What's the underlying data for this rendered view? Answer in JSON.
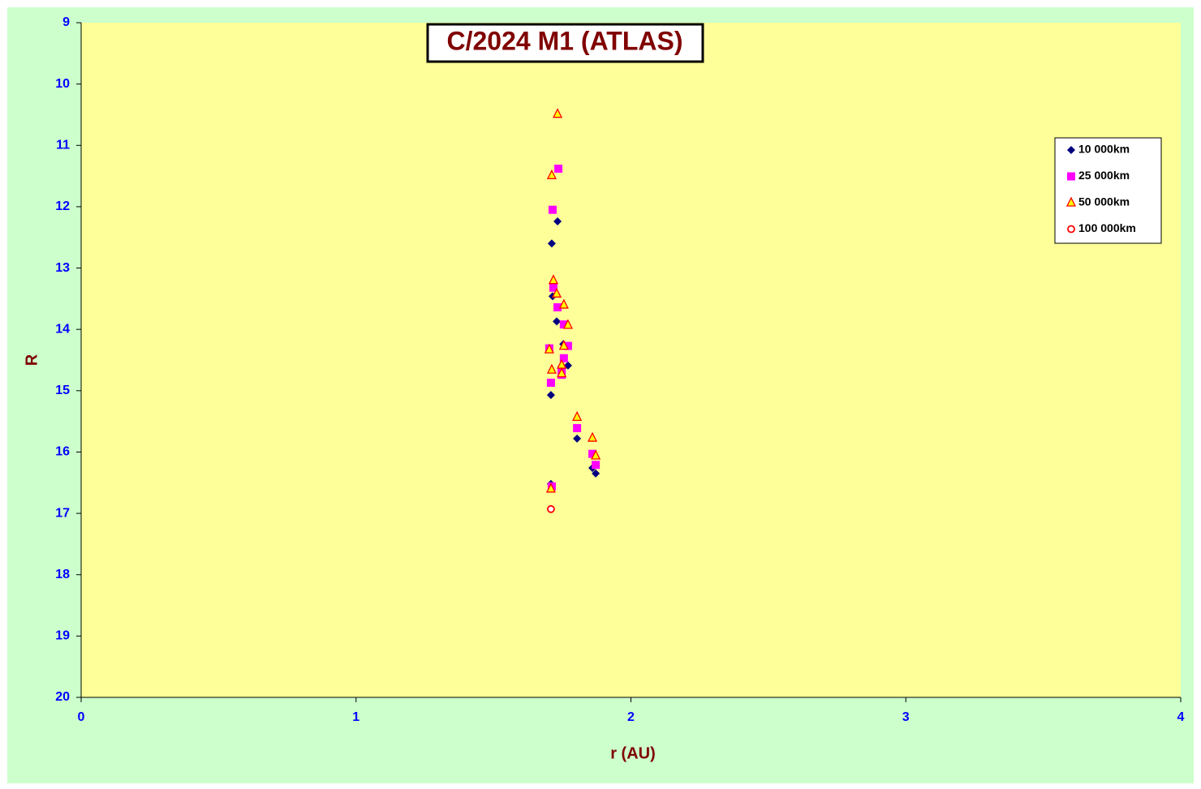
{
  "chart_data": {
    "type": "scatter",
    "title": "C/2024 M1 (ATLAS)",
    "x_label": "r (AU)",
    "y_label": "R",
    "xlim": [
      0,
      4
    ],
    "xticks": [
      0,
      1,
      2,
      3,
      4
    ],
    "ylim": [
      9,
      20
    ],
    "yticks": [
      9,
      10,
      11,
      12,
      13,
      14,
      15,
      16,
      17,
      18,
      19,
      20
    ],
    "y_inverted": true,
    "legend": "right",
    "series": [
      {
        "name": "10 000km",
        "color": "#000080",
        "marker": "diamond",
        "x": [
          1.733,
          1.712,
          1.715,
          1.73,
          1.754,
          1.771,
          1.709,
          1.804,
          1.86,
          1.872,
          1.709
        ],
        "values": [
          12.24,
          12.6,
          13.46,
          13.87,
          14.24,
          14.59,
          15.07,
          15.78,
          16.26,
          16.35,
          16.52
        ]
      },
      {
        "name": "25 000km",
        "color": "#ff00ff",
        "marker": "square",
        "x": [
          1.736,
          1.715,
          1.718,
          1.733,
          1.756,
          1.771,
          1.703,
          1.756,
          1.748,
          1.748,
          1.709,
          1.804,
          1.86,
          1.872,
          1.712
        ],
        "values": [
          11.38,
          12.05,
          13.32,
          13.64,
          13.92,
          14.27,
          14.31,
          14.47,
          14.66,
          14.74,
          14.87,
          15.61,
          16.03,
          16.21,
          16.56
        ]
      },
      {
        "name": "50 000km",
        "color": "#ff0000",
        "marker": "triangle",
        "x": [
          1.733,
          1.712,
          1.718,
          1.73,
          1.756,
          1.771,
          1.756,
          1.703,
          1.712,
          1.748,
          1.748,
          1.804,
          1.86,
          1.872,
          1.709
        ],
        "values": [
          10.49,
          11.49,
          13.2,
          13.42,
          13.6,
          13.93,
          14.27,
          14.33,
          14.66,
          14.58,
          14.72,
          15.43,
          15.77,
          16.06,
          16.6
        ]
      },
      {
        "name": "100 000km",
        "color": "#ff0000",
        "marker": "circle",
        "x": [
          1.709
        ],
        "values": [
          16.93
        ]
      }
    ]
  }
}
